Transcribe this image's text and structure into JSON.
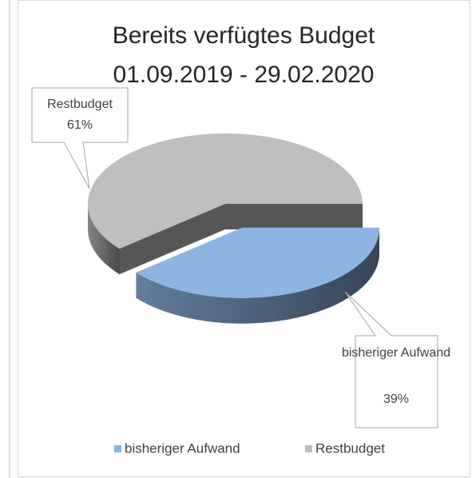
{
  "chart_data": {
    "type": "pie3d",
    "title": "Bereits verfügtes Budget",
    "subtitle": "01.09.2019 - 29.02.2020",
    "categories": [
      "bisheriger Aufwand",
      "Restbudget"
    ],
    "values": [
      39,
      61
    ],
    "value_labels": [
      "39%",
      "61%"
    ],
    "colors": [
      "#8eb4e3",
      "#bfbfbf"
    ],
    "explode": [
      "bisheriger Aufwand"
    ],
    "legend": "bottom"
  }
}
